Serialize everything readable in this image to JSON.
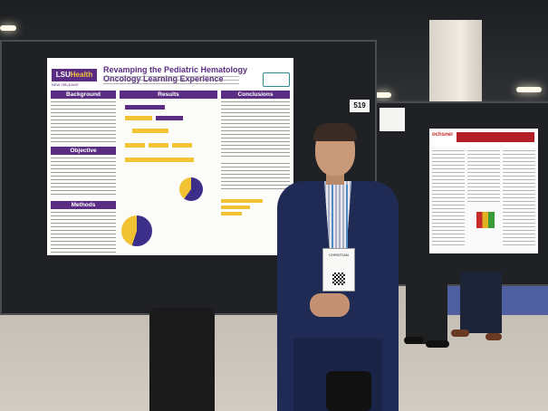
{
  "scene": {
    "description_free": true
  },
  "poster_main": {
    "logo": "LSU",
    "logo_accent": "Health",
    "logo_sub": "NEW ORLEANS",
    "title": "Revamping the Pediatric Hematology Oncology Learning Experience",
    "sections": {
      "background": "Background",
      "objective": "Objective",
      "methods": "Methods",
      "results": "Results",
      "conclusions": "Conclusions"
    },
    "colors": {
      "accent": "#5a2d82",
      "highlight": "#f1c232",
      "chart_dark": "#3b2f8a"
    }
  },
  "booth": {
    "number": "519"
  },
  "poster_right": {
    "logo": "ochsner",
    "colors": {
      "header": "#b41f26"
    }
  },
  "badge": {
    "name_line": "CHRISTIAN"
  }
}
